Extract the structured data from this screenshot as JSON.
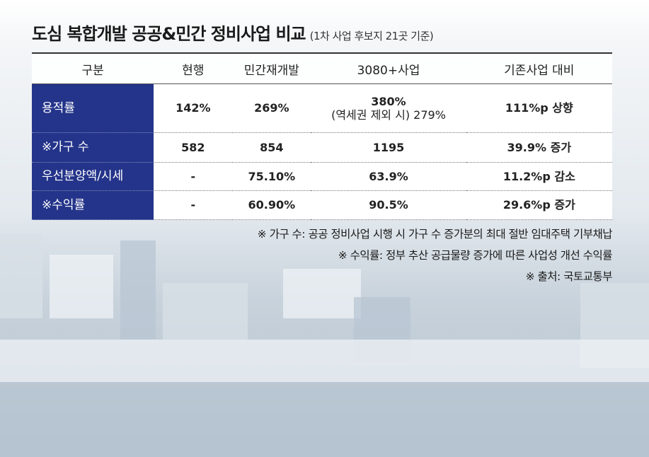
{
  "header": {
    "title": "도심 복합개발 공공&민간 정비사업 비교",
    "subtitle": "(1차 사업 후보지 21곳 기준)"
  },
  "table": {
    "columns": [
      "구분",
      "현행",
      "민간재개발",
      "3080+사업",
      "기존사업 대비"
    ],
    "rows": [
      [
        "용적률",
        "142%",
        "269%",
        [
          "380%",
          "(역세권 제외 시) 279%"
        ],
        "111%p 상향"
      ],
      [
        "※가구 수",
        "582",
        "854",
        "1195",
        "39.9% 증가"
      ],
      [
        "우선분양액/시세",
        "-",
        "75.10%",
        "63.9%",
        "11.2%p 감소"
      ],
      [
        "※수익률",
        "-",
        "60.90%",
        "90.5%",
        "29.6%p 증가"
      ]
    ]
  },
  "notes": [
    "※ 가구 수: 공공 정비사업 시행 시 가구 수 증가분의 최대 절반 임대주택 기부채납",
    "※ 수익률: 정부 추산 공급물량 증가에 따른 사업성 개선 수익률",
    "※ 출처: 국토교통부"
  ]
}
